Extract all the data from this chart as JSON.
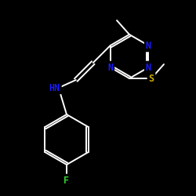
{
  "background_color": "#000000",
  "bond_color": "#ffffff",
  "atom_colors": {
    "N": "#1a1aff",
    "S": "#ccaa00",
    "F": "#33cc33",
    "C": "#ffffff"
  },
  "figsize": [
    2.5,
    2.5
  ],
  "dpi": 100,
  "lw": 1.4
}
